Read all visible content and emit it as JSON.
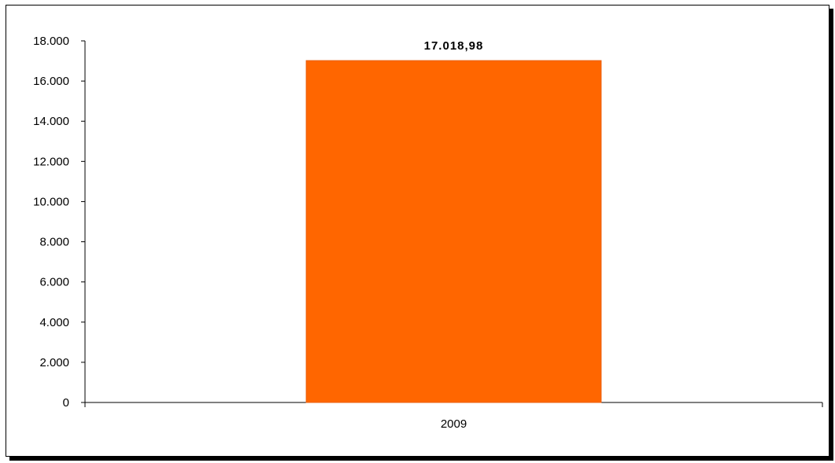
{
  "chart_data": {
    "type": "bar",
    "title": "",
    "xlabel": "",
    "ylabel": "",
    "categories": [
      "2009"
    ],
    "values": [
      17018.98
    ],
    "data_labels": [
      "17.018,98"
    ],
    "ylim": [
      0,
      18000
    ],
    "y_ticks": [
      0,
      2000,
      4000,
      6000,
      8000,
      10000,
      12000,
      14000,
      16000,
      18000
    ],
    "y_tick_labels": [
      "0",
      "2.000",
      "4.000",
      "6.000",
      "8.000",
      "10.000",
      "12.000",
      "14.000",
      "16.000",
      "18.000"
    ],
    "grid": false,
    "legend": "none",
    "bar_color": "#FF6600"
  }
}
